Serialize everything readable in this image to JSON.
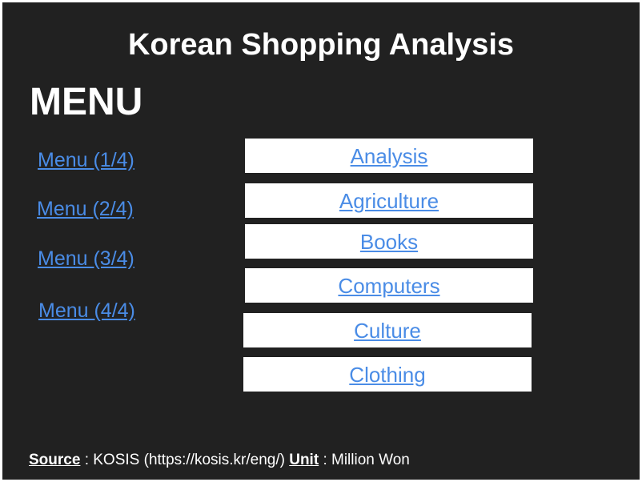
{
  "page": {
    "title": "Korean Shopping Analysis"
  },
  "menu": {
    "heading": "MENU",
    "pages": [
      {
        "label": "Menu (1/4)"
      },
      {
        "label": "Menu (2/4)"
      },
      {
        "label": "Menu (3/4)"
      },
      {
        "label": "Menu (4/4)"
      }
    ]
  },
  "nav": {
    "buttons": [
      {
        "label": "Analysis"
      },
      {
        "label": "Agriculture"
      },
      {
        "label": "Books"
      },
      {
        "label": "Computers"
      },
      {
        "label": "Culture"
      },
      {
        "label": "Clothing"
      }
    ]
  },
  "footer": {
    "source_key": "Source",
    "source_value": " : KOSIS (https://kosis.kr/eng/) ",
    "unit_key": "Unit",
    "unit_value": " : Million Won"
  },
  "colors": {
    "background": "#212121",
    "link": "#4a8ce6",
    "text": "#ffffff"
  }
}
